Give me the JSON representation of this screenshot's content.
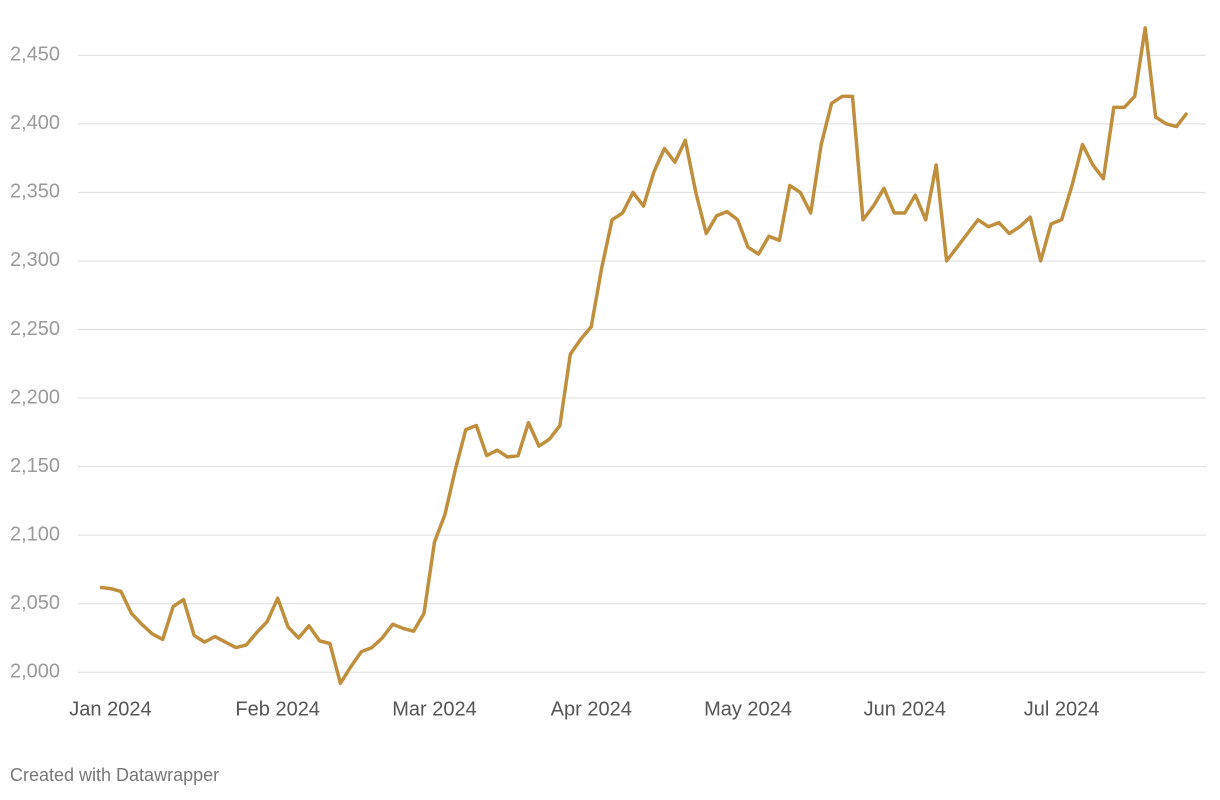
{
  "chart_data": {
    "type": "line",
    "categories": [
      null,
      "Jan 2024",
      null,
      null,
      null,
      null,
      null,
      null,
      null,
      null,
      null,
      null,
      null,
      null,
      null,
      null,
      null,
      "Feb 2024",
      null,
      null,
      null,
      null,
      null,
      null,
      null,
      null,
      null,
      null,
      null,
      null,
      null,
      null,
      "Mar 2024",
      null,
      null,
      null,
      null,
      null,
      null,
      null,
      null,
      null,
      null,
      null,
      null,
      null,
      null,
      "Apr 2024",
      null,
      null,
      null,
      null,
      null,
      null,
      null,
      null,
      null,
      null,
      null,
      null,
      null,
      null,
      "May 2024",
      null,
      null,
      null,
      null,
      null,
      null,
      null,
      null,
      null,
      null,
      null,
      null,
      null,
      null,
      "Jun 2024",
      null,
      null,
      null,
      null,
      null,
      null,
      null,
      null,
      null,
      null,
      null,
      null,
      null,
      null,
      "Jul 2024",
      null,
      null,
      null,
      null,
      null,
      null,
      null,
      null,
      null,
      null,
      null,
      null
    ],
    "values": [
      2062,
      2061,
      2059,
      2043,
      2035,
      2028,
      2024,
      2048,
      2053,
      2027,
      2022,
      2026,
      2022,
      2018,
      2020,
      2029,
      2037,
      2054,
      2033,
      2025,
      2034,
      2023,
      2021,
      1992,
      2004,
      2015,
      2018,
      2025,
      2035,
      2032,
      2030,
      2043,
      2095,
      2115,
      2148,
      2177,
      2180,
      2158,
      2162,
      2157,
      2158,
      2182,
      2165,
      2170,
      2180,
      2232,
      2243,
      2252,
      2295,
      2330,
      2335,
      2350,
      2340,
      2365,
      2382,
      2372,
      2388,
      2350,
      2320,
      2333,
      2336,
      2330,
      2310,
      2305,
      2318,
      2315,
      2355,
      2350,
      2335,
      2385,
      2415,
      2420,
      2420,
      2330,
      2340,
      2353,
      2335,
      2335,
      2348,
      2330,
      2370,
      2300,
      2310,
      2320,
      2330,
      2325,
      2328,
      2320,
      2325,
      2332,
      2300,
      2327,
      2330,
      2355,
      2385,
      2370,
      2360,
      2412,
      2412,
      2420,
      2470,
      2405,
      2400,
      2398,
      2408
    ],
    "color": "#bf8f3e",
    "ylim": [
      1990,
      2475
    ],
    "yticks": [
      {
        "value": 2000,
        "label": "2,000"
      },
      {
        "value": 2050,
        "label": "2,050"
      },
      {
        "value": 2100,
        "label": "2,100"
      },
      {
        "value": 2150,
        "label": "2,150"
      },
      {
        "value": 2200,
        "label": "2,200"
      },
      {
        "value": 2250,
        "label": "2,250"
      },
      {
        "value": 2300,
        "label": "2,300"
      },
      {
        "value": 2350,
        "label": "2,350"
      },
      {
        "value": 2400,
        "label": "2,400"
      },
      {
        "value": 2450,
        "label": "2,450"
      }
    ],
    "grid": true,
    "credit": "Created with Datawrapper"
  }
}
